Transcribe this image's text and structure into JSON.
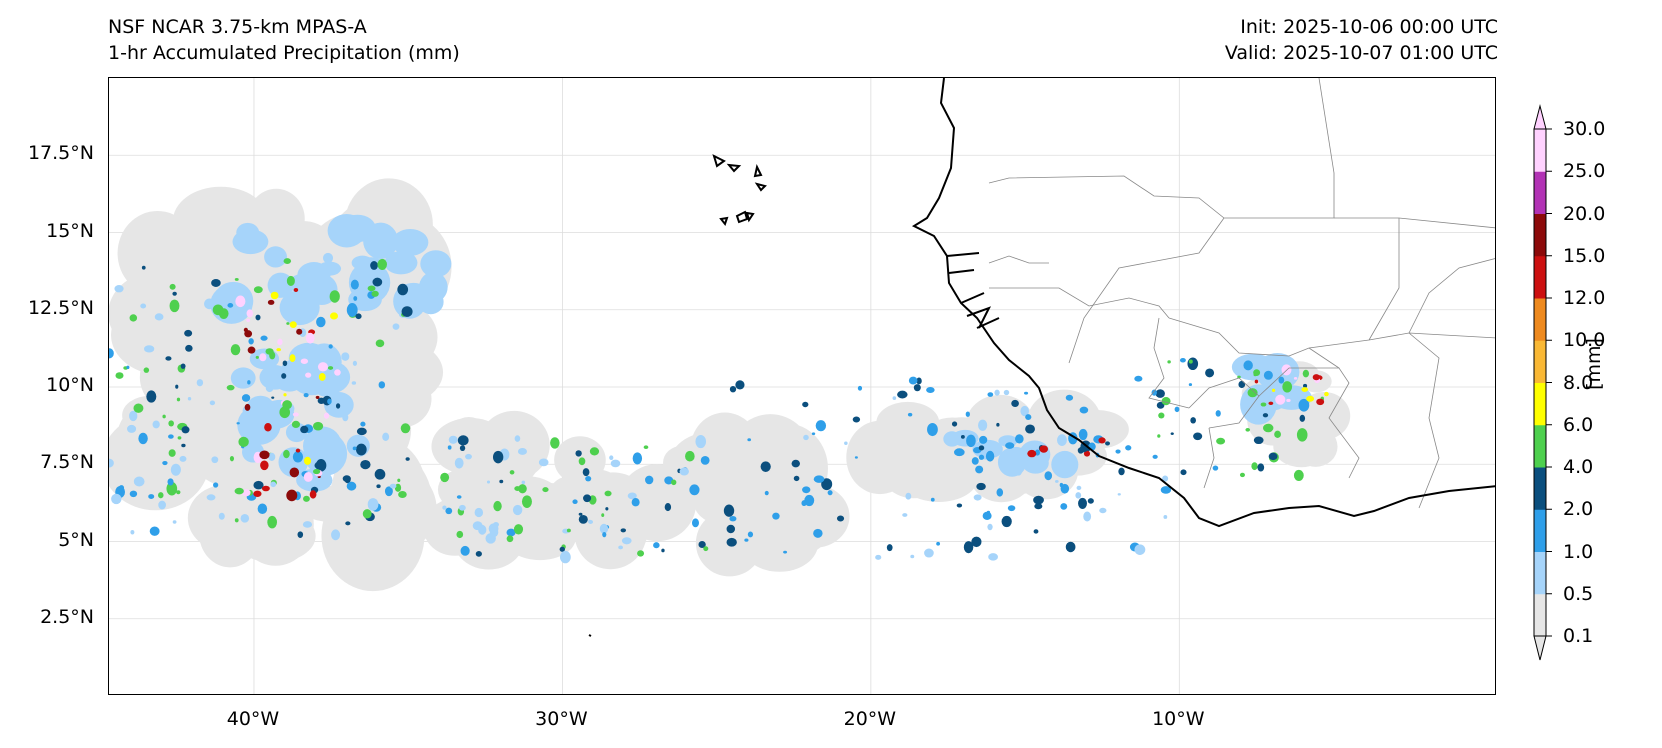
{
  "title": {
    "model": "NSF NCAR 3.75-km MPAS-A",
    "field": "1-hr Accumulated Precipitation (mm)",
    "init": "Init: 2025-10-06 00:00 UTC",
    "valid": "Valid: 2025-10-07 01:00 UTC"
  },
  "map": {
    "lat_range": [
      0,
      20
    ],
    "lon_range": [
      -44.7,
      0.3
    ],
    "lat_ticks": [
      "17.5°N",
      "15°N",
      "12.5°N",
      "10°N",
      "7.5°N",
      "5°N",
      "2.5°N"
    ],
    "lon_ticks": [
      "40°W",
      "30°W",
      "20°W",
      "10°W"
    ],
    "coastline_color": "#000000",
    "border_color": "#888888",
    "gridline_color": "#dddddd"
  },
  "colorbar": {
    "label": "[mm]",
    "levels": [
      "0.1",
      "0.5",
      "1.0",
      "2.0",
      "4.0",
      "6.0",
      "8.0",
      "10.0",
      "12.0",
      "15.0",
      "20.0",
      "25.0",
      "30.0"
    ],
    "colors": [
      "#e6e6e6",
      "#a6d4fa",
      "#2f9fe9",
      "#0b4f7e",
      "#4ed04e",
      "#ffff00",
      "#f9b835",
      "#ee8a1f",
      "#cc1010",
      "#8c0a0a",
      "#b233b5",
      "#ffd2ff"
    ]
  }
}
